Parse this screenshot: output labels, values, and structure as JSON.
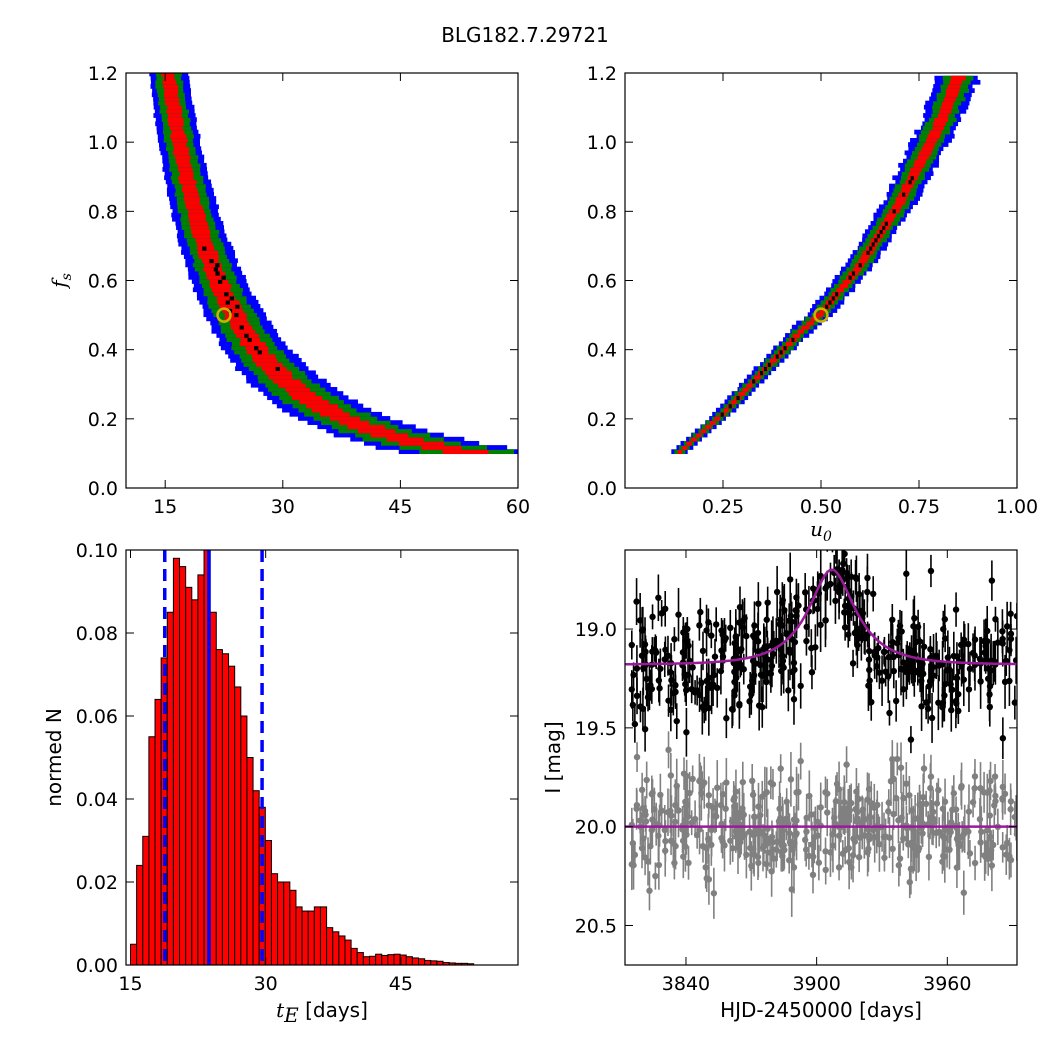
{
  "figure": {
    "title": "BLG182.7.29721",
    "background": "#ffffff"
  },
  "chart_data": [
    {
      "panel": "top-left",
      "type": "heatmap",
      "description_of_values": "2D confidence regions of f_s versus t_E (1-sigma red, 2-sigma green, 3-sigma blue, best bins black)",
      "xlabel": "",
      "ylabel": "f_s",
      "xlim": [
        10,
        60
      ],
      "ylim": [
        0.0,
        1.2
      ],
      "xticks": [
        "15",
        "30",
        "45",
        "60"
      ],
      "yticks": [
        "0.0",
        "0.2",
        "0.4",
        "0.6",
        "0.8",
        "1.0",
        "1.2"
      ],
      "relation": "t_E = 16.8 * f_s^-0.5",
      "band_scatter": [
        0.055,
        0.11,
        0.16
      ],
      "fs_range": [
        0.1,
        1.2
      ],
      "colors": {
        "core": "#ff0000",
        "mid": "#008000",
        "outer": "#0000ff",
        "best": "#000000"
      },
      "best_fit": {
        "x": 22.5,
        "y": 0.5,
        "marker_color": "#c8b400"
      }
    },
    {
      "panel": "top-right",
      "type": "heatmap",
      "description_of_values": "2D confidence regions of f_s versus u0",
      "xlabel": "u_0",
      "ylabel": "",
      "xlim": [
        0.0,
        1.0
      ],
      "ylim": [
        0.0,
        1.2
      ],
      "xticks": [
        "0.25",
        "0.50",
        "0.75",
        "1.00"
      ],
      "yticks": [
        "0.0",
        "0.2",
        "0.4",
        "0.6",
        "0.8",
        "1.0",
        "1.2"
      ],
      "relation": "u0 = 0.5 * f_s^0.75 (approx)",
      "curve_points": [
        [
          0.14,
          0.1
        ],
        [
          0.25,
          0.21
        ],
        [
          0.35,
          0.33
        ],
        [
          0.45,
          0.45
        ],
        [
          0.5,
          0.5
        ],
        [
          0.6,
          0.64
        ],
        [
          0.7,
          0.82
        ],
        [
          0.8,
          1.04
        ],
        [
          0.85,
          1.18
        ]
      ],
      "band_scatter": [
        0.01,
        0.022,
        0.032
      ],
      "colors": {
        "core": "#ff0000",
        "mid": "#008000",
        "outer": "#0000ff",
        "best": "#000000"
      },
      "best_fit": {
        "x": 0.5,
        "y": 0.5,
        "marker_color": "#c8b400"
      }
    },
    {
      "panel": "bottom-left",
      "type": "bar",
      "description_of_values": "Normalised histogram of t_E samples",
      "xlabel": "t_E  [days]",
      "ylabel": "normed N",
      "xlim": [
        14.5,
        58
      ],
      "ylim": [
        0.0,
        0.1
      ],
      "xticks": [
        "15",
        "30",
        "45"
      ],
      "yticks": [
        "0.00",
        "0.02",
        "0.04",
        "0.06",
        "0.08",
        "0.10"
      ],
      "bin_width": 0.68,
      "bin_start": 15.0,
      "values": [
        0.005,
        0.024,
        0.031,
        0.055,
        0.064,
        0.074,
        0.085,
        0.098,
        0.096,
        0.091,
        0.088,
        0.094,
        0.1,
        0.085,
        0.076,
        0.075,
        0.072,
        0.067,
        0.06,
        0.05,
        0.042,
        0.038,
        0.03,
        0.022,
        0.02,
        0.02,
        0.018,
        0.014,
        0.013,
        0.013,
        0.014,
        0.014,
        0.009,
        0.008,
        0.007,
        0.006,
        0.004,
        0.003,
        0.002,
        0.0021,
        0.0026,
        0.0023,
        0.0025,
        0.0026,
        0.0024,
        0.002,
        0.0017,
        0.0015,
        0.0011,
        0.001,
        0.0009,
        0.0006,
        0.0005,
        0.0004,
        0.0004,
        0.0003
      ],
      "bar_color": "#ff0000",
      "lines": [
        {
          "x": 18.8,
          "style": "dashed",
          "color": "#0000ff"
        },
        {
          "x": 23.7,
          "style": "solid",
          "color": "#0000ff"
        },
        {
          "x": 29.6,
          "style": "dashed",
          "color": "#0000ff"
        }
      ]
    },
    {
      "panel": "bottom-right",
      "type": "scatter",
      "description_of_values": "I-band light curve with model (top) and offset residuals (bottom)",
      "xlabel": "HJD-2450000 [days]",
      "ylabel": "I [mag]",
      "xlim": [
        3812,
        3992
      ],
      "ylim_inverted": [
        20.7,
        18.6
      ],
      "xticks": [
        "3840",
        "3900",
        "3960"
      ],
      "yticks": [
        "19.0",
        "19.5",
        "20.0",
        "20.5"
      ],
      "model": {
        "baseline": 19.18,
        "peak": 18.7,
        "t0": 3907,
        "tE": 22.5,
        "u0": 0.5,
        "color": "#9b1a9b"
      },
      "residual_offset": {
        "baseline": 20.0,
        "color": "#9b1a9b"
      },
      "data_color": "#000000",
      "residual_color": "#808080",
      "n_points": 420,
      "scatter": 0.14
    }
  ]
}
